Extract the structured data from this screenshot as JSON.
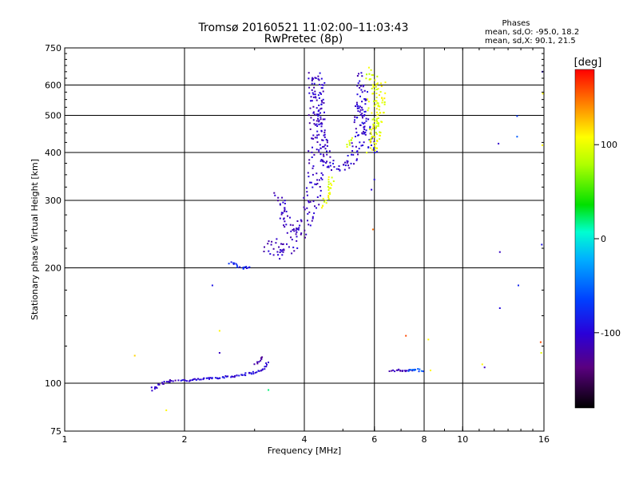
{
  "chart_data": {
    "type": "scatter",
    "title": "Tromsø 20160521 11:02:00–11:03:43",
    "subtitle": "RwPretec (8p)",
    "xlabel": "Frequency [MHz]",
    "ylabel": "Stationary phase Virtual Height [km]",
    "x_scale": "log",
    "y_scale": "log",
    "xlim": [
      1,
      16
    ],
    "ylim": [
      75,
      750
    ],
    "x_ticks": [
      1,
      2,
      4,
      6,
      8,
      10,
      16
    ],
    "y_ticks": [
      75,
      100,
      200,
      300,
      400,
      500,
      600,
      750
    ],
    "x_grid": [
      2,
      4,
      6,
      8,
      10
    ],
    "y_grid": [
      100,
      200,
      300,
      400,
      500,
      600
    ],
    "stats": {
      "heading": "Phases",
      "line_o": "mean, sd,O: -95.0, 18.2",
      "line_x": "mean, sd,X:  90.1, 21.5"
    },
    "colorbar": {
      "label": "[deg]",
      "range": [
        -180,
        180
      ],
      "ticks": [
        100,
        0,
        -100
      ]
    },
    "traces": [
      {
        "kind": "curve",
        "phase": -110,
        "spread": 0.015,
        "points": [
          [
            1.65,
            96
          ],
          [
            1.72,
            99
          ],
          [
            1.78,
            101
          ],
          [
            1.9,
            102
          ]
        ]
      },
      {
        "kind": "curve",
        "phase": -100,
        "spread": 0.01,
        "points": [
          [
            1.95,
            102
          ],
          [
            2.05,
            101.5
          ],
          [
            2.3,
            103
          ],
          [
            2.6,
            104
          ],
          [
            2.9,
            106
          ],
          [
            3.1,
            107.5
          ],
          [
            3.2,
            110
          ],
          [
            3.25,
            114
          ]
        ]
      },
      {
        "kind": "curve",
        "phase": -120,
        "spread": 0.01,
        "points": [
          [
            3.02,
            112
          ],
          [
            3.15,
            118
          ]
        ]
      },
      {
        "kind": "curve",
        "phase": -85,
        "spread": 0.012,
        "points": [
          [
            2.6,
            207
          ],
          [
            2.7,
            203
          ],
          [
            2.8,
            200
          ],
          [
            2.95,
            201
          ]
        ]
      },
      {
        "kind": "curve",
        "phase": -110,
        "spread": 0.05,
        "points": [
          [
            3.3,
            225
          ],
          [
            3.35,
            235
          ],
          [
            3.45,
            215
          ],
          [
            3.6,
            220
          ],
          [
            3.8,
            240
          ],
          [
            4.0,
            262
          ],
          [
            4.15,
            290
          ],
          [
            4.25,
            340
          ],
          [
            4.3,
            400
          ],
          [
            4.32,
            500
          ],
          [
            4.3,
            640
          ]
        ]
      },
      {
        "kind": "curve",
        "phase": -105,
        "spread": 0.035,
        "points": [
          [
            4.3,
            640
          ],
          [
            4.35,
            500
          ],
          [
            4.45,
            420
          ],
          [
            4.6,
            372
          ],
          [
            4.85,
            360
          ],
          [
            5.1,
            365
          ],
          [
            5.3,
            385
          ],
          [
            5.45,
            420
          ],
          [
            5.55,
            500
          ],
          [
            5.6,
            640
          ]
        ]
      },
      {
        "kind": "curve",
        "phase": -110,
        "spread": 0.03,
        "points": [
          [
            3.45,
            310
          ],
          [
            3.6,
            262
          ],
          [
            3.75,
            250
          ],
          [
            3.95,
            255
          ]
        ]
      },
      {
        "kind": "curve",
        "phase": -100,
        "spread": 0.025,
        "points": [
          [
            5.5,
            540
          ],
          [
            5.7,
            480
          ],
          [
            5.85,
            430
          ],
          [
            5.95,
            400
          ]
        ]
      },
      {
        "kind": "curve",
        "phase": 105,
        "spread": 0.03,
        "points": [
          [
            5.85,
            400
          ],
          [
            6.0,
            420
          ],
          [
            6.1,
            470
          ],
          [
            6.2,
            540
          ],
          [
            6.25,
            620
          ]
        ]
      },
      {
        "kind": "curve",
        "phase": 95,
        "spread": 0.035,
        "points": [
          [
            5.9,
            660
          ],
          [
            5.95,
            560
          ],
          [
            6.0,
            470
          ],
          [
            6.05,
            420
          ]
        ]
      },
      {
        "kind": "curve",
        "phase": 100,
        "spread": 0.02,
        "points": [
          [
            4.5,
            290
          ],
          [
            4.6,
            320
          ],
          [
            4.7,
            350
          ]
        ]
      },
      {
        "kind": "curve",
        "phase": 90,
        "spread": 0.01,
        "points": [
          [
            5.15,
            415
          ],
          [
            5.25,
            440
          ]
        ]
      },
      {
        "kind": "curve",
        "phase": -115,
        "spread": 0.01,
        "points": [
          [
            6.6,
            107
          ],
          [
            6.9,
            108
          ],
          [
            7.3,
            108
          ],
          [
            7.6,
            108
          ]
        ]
      },
      {
        "kind": "curve",
        "phase": -60,
        "spread": 0.008,
        "points": [
          [
            7.3,
            108
          ],
          [
            7.7,
            108.5
          ],
          [
            8.0,
            107
          ]
        ]
      }
    ],
    "scatter_points": [
      [
        1.5,
        118,
        120
      ],
      [
        1.8,
        85,
        110
      ],
      [
        2.35,
        180,
        -90
      ],
      [
        2.45,
        137,
        110
      ],
      [
        2.45,
        120,
        -110
      ],
      [
        3.25,
        96,
        20
      ],
      [
        4.45,
        290,
        110
      ],
      [
        5.95,
        252,
        150
      ],
      [
        7.2,
        133,
        160
      ],
      [
        8.2,
        130,
        110
      ],
      [
        8.3,
        108,
        110
      ],
      [
        11.2,
        112,
        110
      ],
      [
        11.35,
        110,
        -110
      ],
      [
        12.3,
        422,
        -105
      ],
      [
        12.4,
        220,
        -110
      ],
      [
        12.4,
        157,
        -95
      ],
      [
        13.7,
        498,
        -70
      ],
      [
        13.7,
        440,
        -55
      ],
      [
        13.8,
        180,
        -80
      ],
      [
        15.7,
        128,
        160
      ],
      [
        15.75,
        120,
        100
      ],
      [
        15.8,
        230,
        -90
      ],
      [
        15.85,
        418,
        110
      ],
      [
        15.9,
        570,
        110
      ],
      [
        15.85,
        650,
        -100
      ],
      [
        4.6,
        368,
        -100
      ],
      [
        5.9,
        320,
        -100
      ],
      [
        6.0,
        340,
        -95
      ]
    ]
  }
}
